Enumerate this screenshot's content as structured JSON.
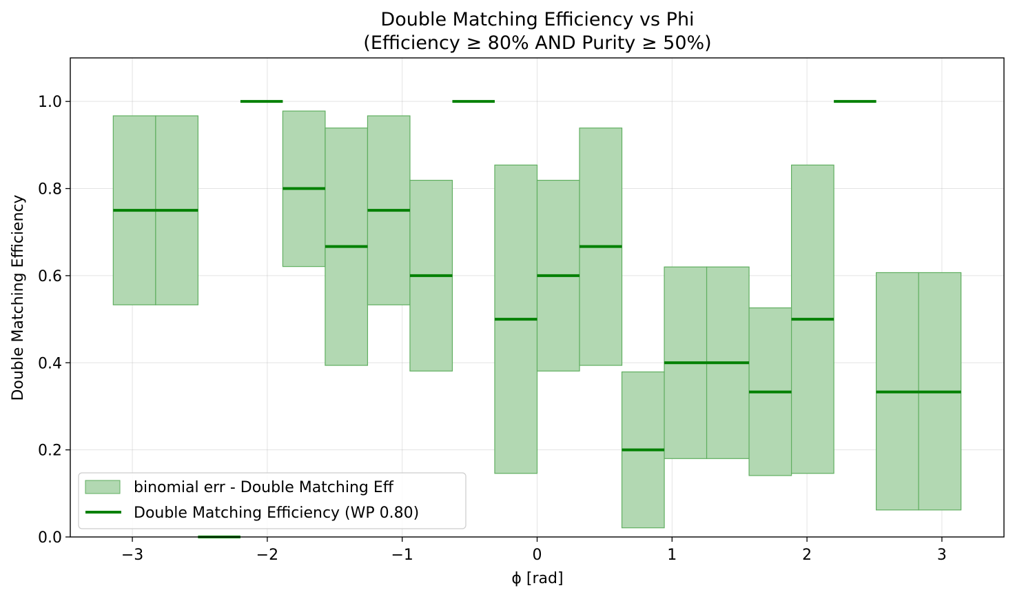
{
  "chart_data": {
    "type": "bar",
    "title": "Double Matching Efficiency vs Phi",
    "subtitle": "(Efficiency ≥ 80% AND Purity ≥ 50%)",
    "xlabel": "ϕ [rad]",
    "ylabel": "Double Matching Efficiency",
    "xlim": [
      -3.46,
      3.46
    ],
    "ylim": [
      0.0,
      1.1
    ],
    "xticks": [
      -3,
      -2,
      -1,
      0,
      1,
      2,
      3
    ],
    "xtick_labels": [
      "−3",
      "−2",
      "−1",
      "0",
      "1",
      "2",
      "3"
    ],
    "yticks": [
      0.0,
      0.2,
      0.4,
      0.6,
      0.8,
      1.0
    ],
    "ytick_labels": [
      "0.0",
      "0.2",
      "0.4",
      "0.6",
      "0.8",
      "1.0"
    ],
    "grid": true,
    "legend_position": "lower-left",
    "colors": {
      "efficiency": "#008000",
      "band_fill": "#b2d8b2",
      "band_edge": "#5fae5f"
    },
    "bin_edges": [
      -3.1416,
      -2.8274,
      -2.5133,
      -2.1991,
      -1.885,
      -1.5708,
      -1.2566,
      -0.9425,
      -0.6283,
      -0.3142,
      0.0,
      0.3142,
      0.6283,
      0.9425,
      1.2566,
      1.5708,
      1.885,
      2.1991,
      2.5133,
      2.8274,
      3.1416
    ],
    "series": [
      {
        "name": "Double Matching Efficiency (WP 0.80)",
        "values": [
          0.75,
          0.75,
          0.0,
          1.0,
          0.8,
          0.667,
          0.75,
          0.6,
          1.0,
          0.5,
          0.6,
          0.667,
          0.2,
          0.4,
          0.4,
          0.333,
          0.5,
          1.0,
          0.333,
          0.333
        ]
      },
      {
        "name": "binomial err - Double Matching Eff",
        "lower": [
          0.533,
          0.533,
          null,
          null,
          0.621,
          0.394,
          0.533,
          0.381,
          null,
          0.146,
          0.381,
          0.394,
          0.021,
          0.18,
          0.18,
          0.141,
          0.146,
          null,
          0.062,
          0.062
        ],
        "upper": [
          0.967,
          0.967,
          null,
          null,
          0.978,
          0.939,
          0.967,
          0.819,
          null,
          0.854,
          0.819,
          0.939,
          0.379,
          0.62,
          0.62,
          0.526,
          0.854,
          null,
          0.607,
          0.607
        ]
      }
    ]
  }
}
